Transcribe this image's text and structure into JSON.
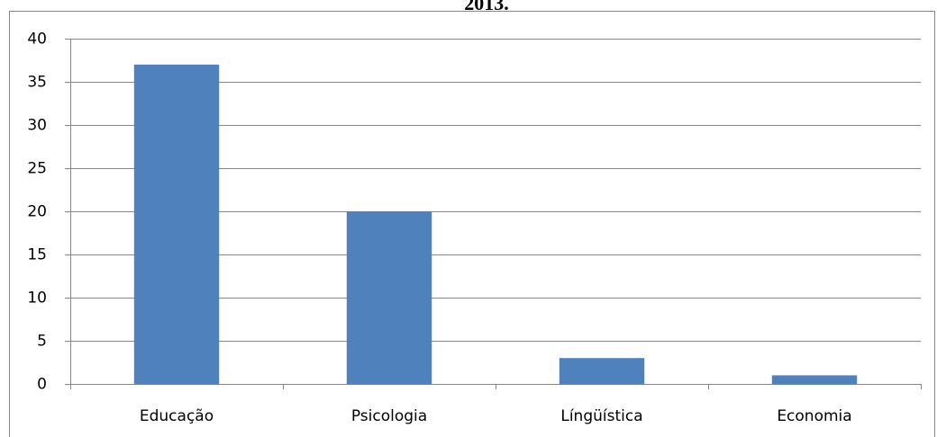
{
  "chart_data": {
    "type": "bar",
    "title": "2013.",
    "categories": [
      "Educação",
      "Psicologia",
      "Língüística",
      "Economia"
    ],
    "values": [
      37,
      20,
      3,
      1
    ],
    "color": "#4f81bd",
    "ylim": [
      0,
      40
    ],
    "yticks": [
      0,
      5,
      10,
      15,
      20,
      25,
      30,
      35,
      40
    ],
    "grid": true
  }
}
